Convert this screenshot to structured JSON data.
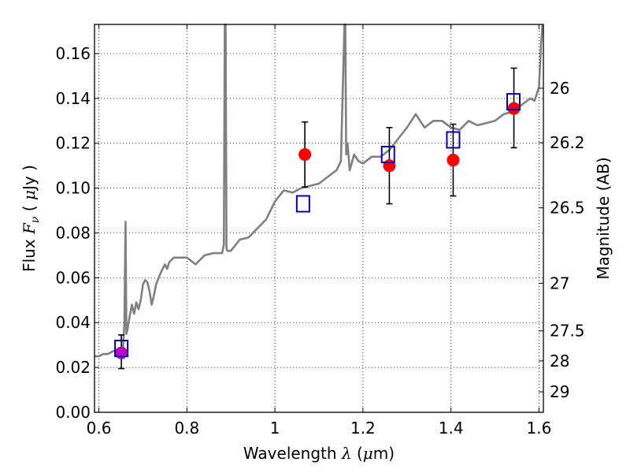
{
  "chart_data": {
    "type": "scatter",
    "xlabel": {
      "prefix": "Wavelength ",
      "symbol": "λ",
      "unit_open": " (",
      "unit_mu": "μ",
      "unit_rest": "m)"
    },
    "ylabel": {
      "prefix": "Flux ",
      "symbol": "F",
      "subscript": "ν",
      "unit_open": " ( ",
      "unit_mu": "μ",
      "unit_rest": "Jy )"
    },
    "y2label": "Magnitude (AB)",
    "xlim": [
      0.59,
      1.61
    ],
    "ylim": [
      0.0,
      0.173
    ],
    "grid": true,
    "x_ticks": [
      {
        "value": 0.6,
        "label": "0.6"
      },
      {
        "value": 0.8,
        "label": "0.8"
      },
      {
        "value": 1.0,
        "label": "1"
      },
      {
        "value": 1.2,
        "label": "1.2"
      },
      {
        "value": 1.4,
        "label": "1.4"
      },
      {
        "value": 1.6,
        "label": "1.6"
      }
    ],
    "y_ticks": [
      {
        "value": 0.0,
        "label": "0.00"
      },
      {
        "value": 0.02,
        "label": "0.02"
      },
      {
        "value": 0.04,
        "label": "0.04"
      },
      {
        "value": 0.06,
        "label": "0.06"
      },
      {
        "value": 0.08,
        "label": "0.08"
      },
      {
        "value": 0.1,
        "label": "0.10"
      },
      {
        "value": 0.12,
        "label": "0.12"
      },
      {
        "value": 0.14,
        "label": "0.14"
      },
      {
        "value": 0.16,
        "label": "0.16"
      }
    ],
    "y2_ticks": [
      {
        "value": 26,
        "label": "26"
      },
      {
        "value": 26.2,
        "label": "26.2"
      },
      {
        "value": 26.5,
        "label": "26.5"
      },
      {
        "value": 27,
        "label": "27"
      },
      {
        "value": 27.5,
        "label": "27.5"
      },
      {
        "value": 28,
        "label": "28"
      },
      {
        "value": 29,
        "label": "29"
      }
    ],
    "series": [
      {
        "kind": "model_spectrum",
        "color": "#808080",
        "x": [
          0.59,
          0.6,
          0.61,
          0.62,
          0.63,
          0.64,
          0.65,
          0.655,
          0.658,
          0.6605,
          0.6625,
          0.665,
          0.67,
          0.675,
          0.68,
          0.685,
          0.69,
          0.695,
          0.7,
          0.705,
          0.71,
          0.715,
          0.72,
          0.725,
          0.73,
          0.74,
          0.75,
          0.755,
          0.76,
          0.77,
          0.78,
          0.8,
          0.82,
          0.84,
          0.86,
          0.88,
          0.884,
          0.886,
          0.888,
          0.89,
          0.892,
          0.9,
          0.92,
          0.94,
          0.96,
          0.98,
          1.0,
          1.02,
          1.04,
          1.06,
          1.08,
          1.1,
          1.12,
          1.14,
          1.15,
          1.155,
          1.158,
          1.16,
          1.162,
          1.165,
          1.17,
          1.18,
          1.19,
          1.2,
          1.22,
          1.24,
          1.26,
          1.28,
          1.3,
          1.32,
          1.34,
          1.36,
          1.38,
          1.4,
          1.42,
          1.44,
          1.46,
          1.48,
          1.5,
          1.52,
          1.54,
          1.56,
          1.58,
          1.59,
          1.6,
          1.605,
          1.608
        ],
        "y": [
          0.025,
          0.025,
          0.026,
          0.026,
          0.027,
          0.028,
          0.028,
          0.029,
          0.04,
          0.085,
          0.035,
          0.037,
          0.043,
          0.048,
          0.044,
          0.049,
          0.046,
          0.05,
          0.057,
          0.059,
          0.058,
          0.054,
          0.048,
          0.052,
          0.057,
          0.062,
          0.066,
          0.064,
          0.067,
          0.069,
          0.069,
          0.069,
          0.066,
          0.07,
          0.071,
          0.071,
          0.075,
          0.173,
          0.173,
          0.073,
          0.072,
          0.072,
          0.077,
          0.078,
          0.082,
          0.086,
          0.094,
          0.099,
          0.098,
          0.1,
          0.101,
          0.102,
          0.105,
          0.108,
          0.112,
          0.15,
          0.173,
          0.173,
          0.115,
          0.12,
          0.108,
          0.115,
          0.112,
          0.111,
          0.114,
          0.114,
          0.117,
          0.122,
          0.127,
          0.133,
          0.127,
          0.13,
          0.13,
          0.127,
          0.126,
          0.13,
          0.128,
          0.129,
          0.13,
          0.133,
          0.134,
          0.137,
          0.14,
          0.139,
          0.145,
          0.165,
          0.173
        ]
      },
      {
        "kind": "observed",
        "marker": "circle",
        "color": "#ff0000",
        "x": [
          1.068,
          1.26,
          1.405,
          1.543
        ],
        "y": [
          0.115,
          0.11,
          0.1125,
          0.1355
        ],
        "y_err_low": [
          0.1005,
          0.093,
          0.0965,
          0.118
        ],
        "y_err_high": [
          0.1295,
          0.127,
          0.1285,
          0.1535
        ]
      },
      {
        "kind": "observed",
        "marker": "circle",
        "color": "#bf00bf",
        "x": [
          0.651
        ],
        "y": [
          0.0265
        ],
        "y_err_low": [
          0.0195
        ],
        "y_err_high": [
          0.0345
        ]
      },
      {
        "kind": "model_photometry",
        "marker": "square",
        "color": "#0000cc",
        "x": [
          0.651,
          1.064,
          1.257,
          1.405,
          1.542
        ],
        "y": [
          0.0285,
          0.093,
          0.115,
          0.1215,
          0.1385
        ]
      }
    ]
  }
}
